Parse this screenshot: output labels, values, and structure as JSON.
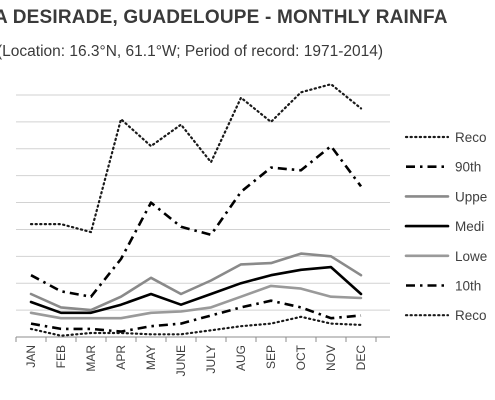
{
  "chart_data": {
    "type": "line",
    "title": "A DESIRADE, GUADELOUPE - MONTHLY RAINFA",
    "subtitle": "(Location: 16.3°N, 61.1°W; Period of record: 1971-2014)",
    "xlabel": "",
    "ylabel": "",
    "categories": [
      "JAN",
      "FEB",
      "MAR",
      "APR",
      "MAY",
      "JUNE",
      "JULY",
      "AUG",
      "SEP",
      "OCT",
      "NOV",
      "DEC"
    ],
    "ylim": [
      0,
      9
    ],
    "grid": true,
    "legend_position": "right",
    "series": [
      {
        "name": "Reco",
        "style": "dotted",
        "color": "#1a1a1a",
        "values": [
          4.2,
          4.2,
          3.9,
          8.1,
          7.1,
          7.9,
          6.5,
          8.9,
          8.0,
          9.1,
          9.4,
          8.5
        ]
      },
      {
        "name": "90th",
        "style": "dashdot",
        "color": "#000000",
        "values": [
          2.3,
          1.7,
          1.5,
          2.9,
          5.0,
          4.1,
          3.8,
          5.4,
          6.3,
          6.2,
          7.1,
          5.6
        ]
      },
      {
        "name": "Uppe",
        "style": "solid",
        "color": "#8a8a8a",
        "values": [
          1.6,
          1.1,
          1.0,
          1.5,
          2.2,
          1.6,
          2.1,
          2.7,
          2.75,
          3.1,
          3.0,
          2.3
        ]
      },
      {
        "name": "Medi",
        "style": "solid",
        "color": "#000000",
        "values": [
          1.3,
          0.9,
          0.9,
          1.2,
          1.6,
          1.2,
          1.6,
          2.0,
          2.3,
          2.5,
          2.6,
          1.6
        ]
      },
      {
        "name": "Lowe",
        "style": "solid",
        "color": "#9a9a9a",
        "values": [
          0.9,
          0.7,
          0.7,
          0.7,
          0.9,
          0.95,
          1.1,
          1.5,
          1.9,
          1.8,
          1.5,
          1.45
        ]
      },
      {
        "name": "10th",
        "style": "dashdot",
        "color": "#000000",
        "values": [
          0.5,
          0.3,
          0.3,
          0.2,
          0.4,
          0.5,
          0.8,
          1.1,
          1.35,
          1.1,
          0.7,
          0.8
        ]
      },
      {
        "name": "Reco",
        "style": "dotted",
        "color": "#1a1a1a",
        "values": [
          0.3,
          0.05,
          0.15,
          0.15,
          0.1,
          0.1,
          0.25,
          0.4,
          0.5,
          0.75,
          0.5,
          0.45
        ]
      }
    ]
  }
}
